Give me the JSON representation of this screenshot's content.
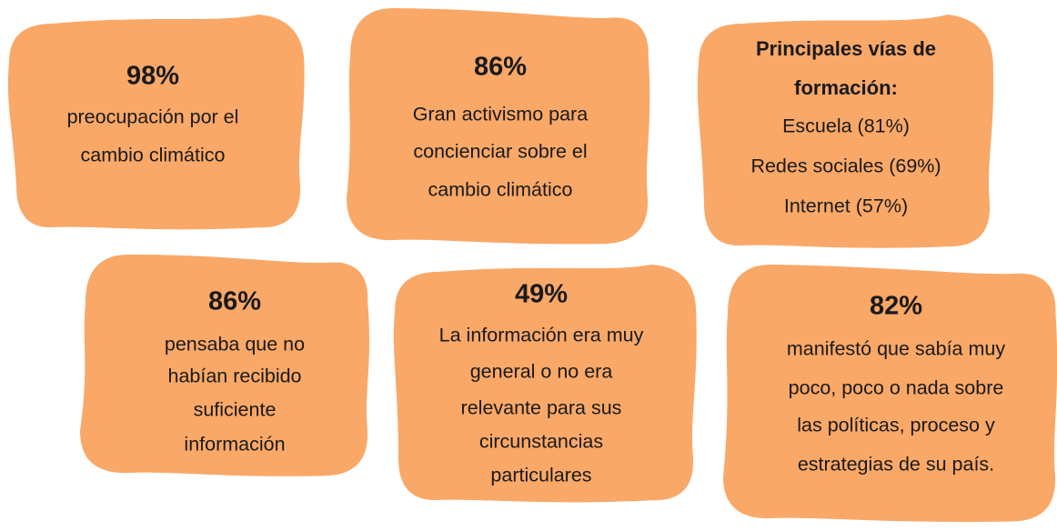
{
  "cards": [
    {
      "title": [
        "98%"
      ],
      "lines": [
        "preocupación por el",
        "cambio climático"
      ]
    },
    {
      "title": [
        "86%"
      ],
      "lines": [
        "Gran activismo para",
        "concienciar sobre el",
        "cambio climático"
      ]
    },
    {
      "title": [
        "Principales vías de",
        "formación:"
      ],
      "lines": [
        "Escuela (81%)",
        "Redes sociales (69%)",
        "Internet (57%)"
      ]
    },
    {
      "title": [
        "86%"
      ],
      "lines": [
        "pensaba que no",
        "habían recibido",
        "suficiente",
        "información"
      ]
    },
    {
      "title": [
        "49%"
      ],
      "lines": [
        "La información era muy",
        "general o no era",
        "relevante para sus",
        "circunstancias",
        "particulares"
      ]
    },
    {
      "title": [
        "82%"
      ],
      "lines": [
        "manifestó que sabía muy",
        "poco, poco o nada sobre",
        "las políticas, proceso y",
        "estrategias de su país."
      ]
    }
  ]
}
